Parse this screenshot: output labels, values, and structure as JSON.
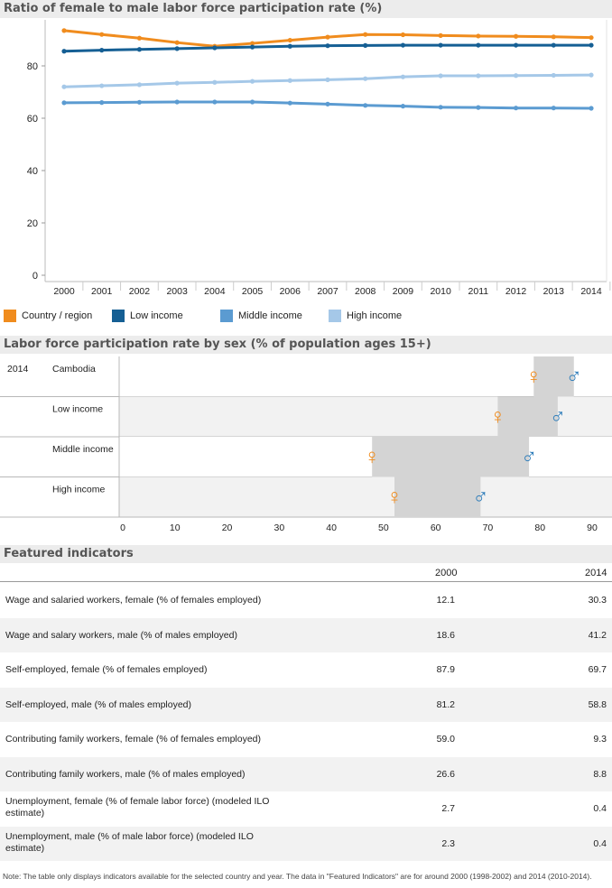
{
  "chart1": {
    "title": "Ratio of female to male labor force participation rate (%)",
    "chart_data": {
      "type": "line",
      "title": "Ratio of female to male labor force participation rate (%)",
      "x": [
        "2000",
        "2001",
        "2002",
        "2003",
        "2004",
        "2005",
        "2006",
        "2007",
        "2008",
        "2009",
        "2010",
        "2011",
        "2012",
        "2013",
        "2014"
      ],
      "ylim": [
        0,
        100
      ],
      "yticks": [
        "0",
        "20",
        "40",
        "60",
        "80"
      ],
      "series": [
        {
          "name": "Country / region",
          "color": "#f08c1e",
          "values": [
            93.5,
            92.0,
            90.6,
            88.9,
            87.5,
            88.6,
            89.8,
            91.0,
            92.0,
            91.9,
            91.6,
            91.4,
            91.3,
            91.1,
            90.8
          ]
        },
        {
          "name": "Low income",
          "color": "#155f94",
          "values": [
            85.6,
            86.0,
            86.3,
            86.6,
            86.9,
            87.2,
            87.5,
            87.7,
            87.8,
            87.9,
            87.9,
            87.9,
            87.9,
            87.9,
            87.9
          ]
        },
        {
          "name": "Middle income",
          "color": "#5b9bd1",
          "values": [
            65.9,
            66.0,
            66.1,
            66.2,
            66.2,
            66.2,
            65.8,
            65.4,
            64.9,
            64.6,
            64.2,
            64.1,
            63.9,
            63.9,
            63.8
          ]
        },
        {
          "name": "High income",
          "color": "#a5c8e8",
          "values": [
            72.0,
            72.4,
            72.8,
            73.4,
            73.7,
            74.1,
            74.4,
            74.7,
            75.1,
            75.8,
            76.2,
            76.2,
            76.3,
            76.4,
            76.5
          ]
        }
      ]
    }
  },
  "chart2": {
    "title": "Labor force participation rate by sex (% of population ages 15+)",
    "year": "2014",
    "chart_data": {
      "type": "range",
      "title": "Labor force participation rate by sex (% of population ages 15+)",
      "xlim": [
        0,
        90
      ],
      "xticks": [
        "0",
        "10",
        "20",
        "30",
        "40",
        "50",
        "60",
        "70",
        "80",
        "90"
      ],
      "female_symbol": "♀",
      "male_symbol": "♂",
      "rows": [
        {
          "label": "Cambodia",
          "female": 78.8,
          "male": 86.5
        },
        {
          "label": "Low income",
          "female": 71.9,
          "male": 83.4
        },
        {
          "label": "Middle income",
          "female": 47.8,
          "male": 77.9
        },
        {
          "label": "High income",
          "female": 52.1,
          "male": 68.6
        }
      ]
    }
  },
  "featured": {
    "title": "Featured indicators",
    "col1": "2000",
    "col2": "2014",
    "rows": [
      {
        "label": "Wage and salaried workers, female (% of females employed)",
        "v2000": "12.1",
        "v2014": "30.3"
      },
      {
        "label": "Wage and salary workers, male (% of males employed)",
        "v2000": "18.6",
        "v2014": "41.2"
      },
      {
        "label": "Self-employed, female (% of females employed)",
        "v2000": "87.9",
        "v2014": "69.7"
      },
      {
        "label": "Self-employed, male (% of males employed)",
        "v2000": "81.2",
        "v2014": "58.8"
      },
      {
        "label": "Contributing family workers, female (% of females employed)",
        "v2000": "59.0",
        "v2014": "9.3"
      },
      {
        "label": "Contributing family workers, male (% of males employed)",
        "v2000": "26.6",
        "v2014": "8.8"
      },
      {
        "label": "Unemployment, female (% of female labor force) (modeled ILO estimate)",
        "v2000": "2.7",
        "v2014": "0.4"
      },
      {
        "label": "Unemployment, male (% of male labor force) (modeled ILO estimate)",
        "v2000": "2.3",
        "v2014": "0.4"
      }
    ],
    "note": "Note: The table only displays indicators available for the selected country and year. The data in \"Featured Indicators\" are for around 2000 (1998-2002) and 2014 (2010-2014)."
  },
  "colors": {
    "female": "#f08c1e",
    "male": "#2b7bb9",
    "range": "#d4d4d4",
    "rowAlt": "#f2f2f2"
  }
}
